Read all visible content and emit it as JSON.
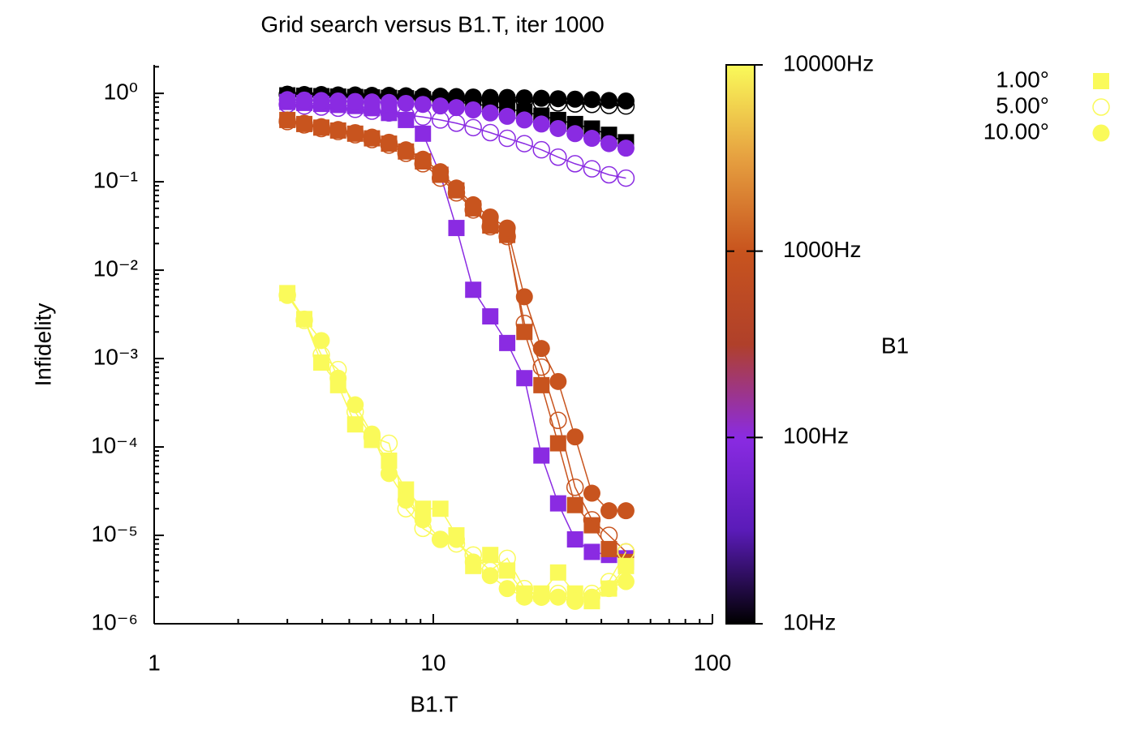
{
  "chart_data": {
    "type": "scatter",
    "title": "Grid search versus B1.T, iter 1000",
    "x_label": "B1.T",
    "y_label": "Infidelity",
    "log_x": true,
    "log_y": true,
    "xlim": [
      1,
      100
    ],
    "ylim": [
      1e-06,
      2.1
    ],
    "xticks": [
      1,
      10,
      100
    ],
    "yticks": [
      {
        "value": 1,
        "label": "10⁰"
      },
      {
        "value": 0.1,
        "label": "10⁻¹"
      },
      {
        "value": 0.01,
        "label": "10⁻²"
      },
      {
        "value": 0.001,
        "label": "10⁻³"
      },
      {
        "value": 0.0001,
        "label": "10⁻⁴"
      },
      {
        "value": 1e-05,
        "label": "10⁻⁵"
      },
      {
        "value": 1e-06,
        "label": "10⁻⁶"
      }
    ],
    "colorbar": {
      "label": "B1",
      "log": true,
      "lim": [
        10,
        10000
      ],
      "ticks": [
        {
          "value": 10,
          "label": "10Hz"
        },
        {
          "value": 100,
          "label": "100Hz"
        },
        {
          "value": 1000,
          "label": "1000Hz"
        },
        {
          "value": 10000,
          "label": "10000Hz"
        }
      ],
      "palette": [
        "#000000",
        "#5a1bb8",
        "#8a2be2",
        "#b0402a",
        "#c8541e",
        "#e6a040",
        "#fafa5a"
      ]
    },
    "marker_types": [
      {
        "name": "1.00°",
        "marker": "square"
      },
      {
        "name": "5.00°",
        "marker": "open-circle"
      },
      {
        "name": "10.00°",
        "marker": "filled-circle"
      }
    ],
    "x": [
      3,
      3.45,
      3.97,
      4.56,
      5.25,
      6.03,
      6.94,
      7.98,
      9.18,
      10.6,
      12.1,
      13.9,
      16,
      18.4,
      21.2,
      24.4,
      28,
      32.2,
      37,
      42.6,
      49
    ],
    "series": [
      {
        "b1": 10,
        "marker": 0,
        "values": [
          0.95,
          0.94,
          0.93,
          0.92,
          0.91,
          0.9,
          0.89,
          0.88,
          0.86,
          0.84,
          0.8,
          0.76,
          0.72,
          0.67,
          0.62,
          0.56,
          0.5,
          0.45,
          0.4,
          0.34,
          0.28
        ]
      },
      {
        "b1": 10,
        "marker": 1,
        "values": [
          0.97,
          0.96,
          0.95,
          0.94,
          0.93,
          0.92,
          0.91,
          0.9,
          0.89,
          0.88,
          0.87,
          0.86,
          0.85,
          0.84,
          0.82,
          0.8,
          0.78,
          0.76,
          0.75,
          0.73,
          0.72
        ]
      },
      {
        "b1": 10,
        "marker": 2,
        "values": [
          0.98,
          0.97,
          0.97,
          0.96,
          0.96,
          0.95,
          0.95,
          0.94,
          0.93,
          0.93,
          0.92,
          0.91,
          0.9,
          0.9,
          0.89,
          0.88,
          0.87,
          0.86,
          0.85,
          0.83,
          0.82
        ]
      },
      {
        "b1": 100,
        "marker": 0,
        "values": [
          0.8,
          0.78,
          0.76,
          0.74,
          0.72,
          0.68,
          0.6,
          0.5,
          0.35,
          0.12,
          0.03,
          0.006,
          0.003,
          0.0015,
          0.0006,
          8e-05,
          2.3e-05,
          9e-06,
          6.5e-06,
          6e-06,
          5.5e-06
        ]
      },
      {
        "b1": 100,
        "marker": 1,
        "values": [
          0.75,
          0.72,
          0.7,
          0.68,
          0.66,
          0.63,
          0.6,
          0.57,
          0.54,
          0.5,
          0.46,
          0.41,
          0.36,
          0.31,
          0.27,
          0.23,
          0.19,
          0.16,
          0.14,
          0.12,
          0.11
        ]
      },
      {
        "b1": 100,
        "marker": 2,
        "values": [
          0.85,
          0.84,
          0.83,
          0.82,
          0.81,
          0.8,
          0.79,
          0.77,
          0.75,
          0.72,
          0.69,
          0.65,
          0.6,
          0.55,
          0.5,
          0.45,
          0.4,
          0.35,
          0.31,
          0.27,
          0.24
        ]
      },
      {
        "b1": 1000,
        "marker": 0,
        "values": [
          0.5,
          0.45,
          0.41,
          0.38,
          0.35,
          0.31,
          0.27,
          0.22,
          0.17,
          0.12,
          0.08,
          0.05,
          0.032,
          0.025,
          0.002,
          0.0005,
          0.00011,
          2.2e-05,
          1.3e-05,
          7e-06,
          5e-06
        ]
      },
      {
        "b1": 1000,
        "marker": 1,
        "values": [
          0.48,
          0.44,
          0.4,
          0.37,
          0.34,
          0.3,
          0.26,
          0.21,
          0.16,
          0.11,
          0.075,
          0.048,
          0.031,
          0.024,
          0.0025,
          0.0008,
          0.0002,
          3.5e-05,
          1.5e-05,
          1e-05,
          6.5e-06
        ]
      },
      {
        "b1": 1000,
        "marker": 2,
        "values": [
          0.5,
          0.46,
          0.42,
          0.39,
          0.36,
          0.32,
          0.28,
          0.23,
          0.18,
          0.13,
          0.085,
          0.055,
          0.04,
          0.03,
          0.005,
          0.0013,
          0.00055,
          0.00013,
          3e-05,
          1.9e-05,
          1.9e-05
        ]
      },
      {
        "b1": 10000,
        "marker": 0,
        "values": [
          0.0055,
          0.0028,
          0.0009,
          0.0005,
          0.00018,
          0.00012,
          7e-05,
          3.3e-05,
          2e-05,
          2e-05,
          1e-05,
          4.5e-06,
          6e-06,
          4e-06,
          2.2e-06,
          2.2e-06,
          3.8e-06,
          2.2e-06,
          1.8e-06,
          2.5e-06,
          4.5e-06
        ]
      },
      {
        "b1": 10000,
        "marker": 1,
        "values": [
          0.0052,
          0.0027,
          0.0011,
          0.00075,
          0.00025,
          0.00013,
          0.00011,
          2e-05,
          1.2e-05,
          9e-06,
          8e-06,
          6e-06,
          4e-06,
          5.5e-06,
          2.5e-06,
          2e-06,
          2.2e-06,
          1.8e-06,
          2.2e-06,
          3e-06,
          6.5e-06
        ]
      },
      {
        "b1": 10000,
        "marker": 2,
        "values": [
          0.0053,
          0.0028,
          0.0016,
          0.0006,
          0.0003,
          0.00014,
          5e-05,
          2.5e-05,
          1.5e-05,
          9e-06,
          9e-06,
          5e-06,
          3.5e-06,
          2.5e-06,
          2e-06,
          2e-06,
          2e-06,
          1.8e-06,
          2e-06,
          2.5e-06,
          3e-06
        ]
      }
    ]
  }
}
